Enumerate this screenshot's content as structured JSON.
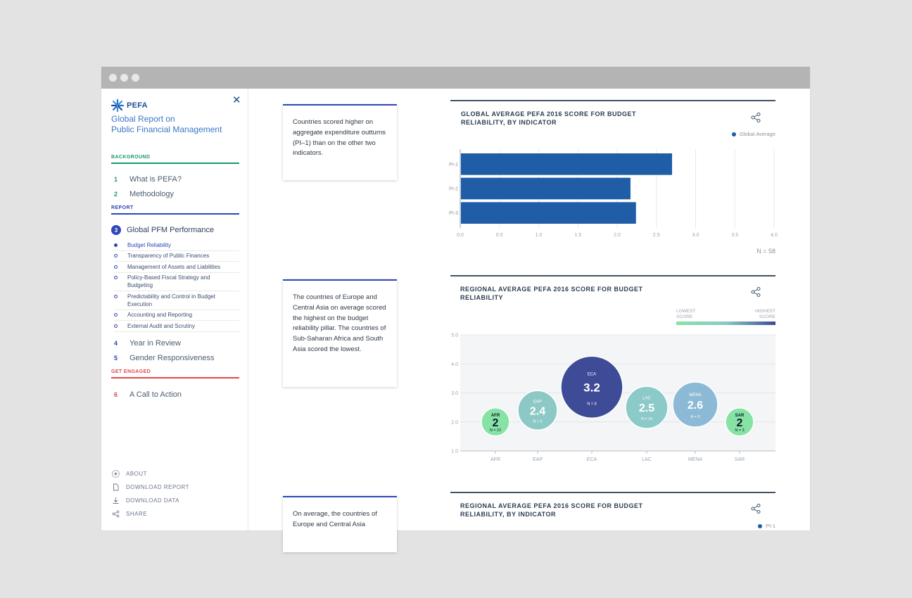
{
  "window": {
    "colors": {
      "titlebar": "#b4b4b4",
      "accent": "#2d47b9"
    }
  },
  "sidebar": {
    "logo_text": "PEFA",
    "close_label": "✕",
    "title_line1": "Global Report on",
    "title_line2": "Public Financial Management",
    "sections": [
      {
        "label": "BACKGROUND",
        "color": "#1a9a6a"
      },
      {
        "label": "REPORT",
        "color": "#2d47b9"
      },
      {
        "label": "GET ENGAGED",
        "color": "#e04848"
      }
    ],
    "items": [
      {
        "num": "1",
        "label": "What is PEFA?"
      },
      {
        "num": "2",
        "label": "Methodology"
      },
      {
        "num": "3",
        "label": "Global PFM Performance"
      },
      {
        "num": "4",
        "label": "Year in Review"
      },
      {
        "num": "5",
        "label": "Gender Responsiveness"
      },
      {
        "num": "6",
        "label": "A Call to Action"
      }
    ],
    "subitems": [
      {
        "label": "Budget Reliability"
      },
      {
        "label": "Transparency of Public Finances"
      },
      {
        "label": "Management of Assets and Liabilities"
      },
      {
        "label": "Policy-Based Fiscal Strategy and Budgeting"
      },
      {
        "label": "Predictability and Control in Budget Execution"
      },
      {
        "label": "Accounting and Reporting"
      },
      {
        "label": "External Audit and Scrutiny"
      }
    ],
    "utils": [
      {
        "label": "ABOUT",
        "icon": "plus-icon"
      },
      {
        "label": "DOWNLOAD REPORT",
        "icon": "document-icon"
      },
      {
        "label": "DOWNLOAD DATA",
        "icon": "download-icon"
      },
      {
        "label": "SHARE",
        "icon": "share-icon"
      }
    ]
  },
  "callouts": [
    "Countries scored higher on aggregate expenditure outturns (PI–1) than on the other two indicators.",
    "The countries of Europe and Central Asia on average scored the highest on the budget reliability pillar. The countries of Sub-Saharan Africa and South Asia scored the lowest.",
    "On average, the countries of Europe and Central Asia"
  ],
  "cards": [
    {
      "title": "GLOBAL AVERAGE PEFA 2016 SCORE FOR BUDGET RELIABILITY, BY INDICATOR",
      "legend": "Global Average",
      "note": "N = 58"
    },
    {
      "title": "REGIONAL AVERAGE PEFA 2016 SCORE FOR BUDGET RELIABILITY",
      "legend_low": "LOWEST SCORE",
      "legend_high": "HIGHEST SCORE"
    },
    {
      "title": "REGIONAL AVERAGE PEFA 2016 SCORE FOR BUDGET RELIABILITY, BY INDICATOR",
      "legend": "PI-1"
    }
  ],
  "chart_data": [
    {
      "type": "bar",
      "orientation": "horizontal",
      "categories": [
        "PI-1",
        "PI-2",
        "PI-3"
      ],
      "values": [
        2.7,
        2.17,
        2.24
      ],
      "xlim": [
        0,
        4.0
      ],
      "xticks": [
        "0.0",
        "0.5",
        "1.0",
        "1.5",
        "2.0",
        "2.5",
        "3.0",
        "3.5",
        "4.0"
      ],
      "color": "#1f5da6",
      "grid": true,
      "legend_placement": "top-right"
    },
    {
      "type": "scatter",
      "categories": [
        "AFR",
        "EAP",
        "ECA",
        "LAC",
        "MENA",
        "SAR"
      ],
      "values": [
        2,
        2.4,
        3.2,
        2.5,
        2.6,
        2
      ],
      "value_labels": [
        "2",
        "2.4",
        "3.2",
        "2.5",
        "2.6",
        "2"
      ],
      "n_labels": [
        "N = 22",
        "N = 5",
        "N = 8",
        "N = 15",
        "N = 5",
        "N = 3"
      ],
      "ylim": [
        1.0,
        5.0
      ],
      "yticks": [
        "1.0",
        "2.0",
        "3.0",
        "4.0",
        "5.0"
      ],
      "colors": [
        "#86e3a5",
        "#8cc9c6",
        "#3e4c97",
        "#8ccac9",
        "#8cbad6",
        "#86e3a5"
      ],
      "label_colors": [
        "#0d1b2a",
        "#ffffff",
        "#ffffff",
        "#ffffff",
        "#ffffff",
        "#0d1b2a"
      ],
      "legend_placement": "top-right"
    }
  ]
}
